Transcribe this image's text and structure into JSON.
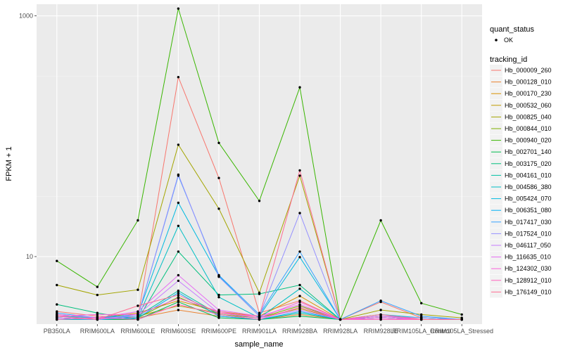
{
  "chart_data": {
    "type": "line",
    "xlabel": "sample_name",
    "ylabel": "FPKM + 1",
    "y_scale": "log10",
    "ylim": [
      2.75,
      1250
    ],
    "y_ticks": [
      10,
      1000
    ],
    "y_tick_labels": [
      "10",
      "1000"
    ],
    "grid": true,
    "legend_position": "right",
    "categories": [
      "PB350LA",
      "RRIM600LA",
      "RRIM600LE",
      "RRIM600SE",
      "RRIM600PE",
      "RRIM901LA",
      "RRIM928BA",
      "RRIM928LA",
      "RRIM928LE",
      "RRIM105LA_Control",
      "RRIM105LA_Stressed"
    ],
    "marker_legend": {
      "title": "quant_status",
      "items": [
        "OK"
      ]
    },
    "series_legend_title": "tracking_id",
    "series": [
      {
        "name": "Hb_000009_260",
        "color": "#F8766D",
        "values": [
          3.5,
          3.2,
          3.1,
          310,
          45,
          3.4,
          4.3,
          3.0,
          4.2,
          3.1,
          3.0
        ]
      },
      {
        "name": "Hb_000128_010",
        "color": "#EA8331",
        "values": [
          3.1,
          3.0,
          3.1,
          3.6,
          3.2,
          3.0,
          3.3,
          3.0,
          3.1,
          3.0,
          3.0
        ]
      },
      {
        "name": "Hb_000170_230",
        "color": "#D89000",
        "values": [
          3.3,
          3.1,
          3.4,
          4.3,
          3.5,
          3.2,
          4.7,
          3.0,
          3.2,
          3.1,
          3.0
        ]
      },
      {
        "name": "Hb_000532_060",
        "color": "#C09B00",
        "values": [
          3.2,
          3.1,
          3.2,
          3.9,
          3.4,
          3.1,
          3.7,
          3.0,
          3.1,
          3.0,
          3.0
        ]
      },
      {
        "name": "Hb_000825_040",
        "color": "#A3A500",
        "values": [
          5.8,
          4.8,
          5.3,
          85,
          25,
          5.0,
          47,
          3.0,
          3.6,
          3.3,
          3.1
        ]
      },
      {
        "name": "Hb_000844_010",
        "color": "#7CAE00",
        "values": [
          3.1,
          3.0,
          3.1,
          4.6,
          3.3,
          3.1,
          3.9,
          3.0,
          3.1,
          3.0,
          3.0
        ]
      },
      {
        "name": "Hb_000940_020",
        "color": "#39B600",
        "values": [
          9.2,
          5.6,
          20,
          1150,
          88,
          29,
          255,
          3.0,
          20,
          4.1,
          3.3
        ]
      },
      {
        "name": "Hb_002701_140",
        "color": "#00BB4E",
        "values": [
          3.0,
          3.0,
          3.0,
          4.2,
          3.1,
          3.0,
          3.2,
          3.0,
          3.0,
          3.0,
          3.0
        ]
      },
      {
        "name": "Hb_003175_020",
        "color": "#00BF7D",
        "values": [
          4.0,
          3.4,
          3.0,
          11,
          4.8,
          4.9,
          5.8,
          3.0,
          3.2,
          3.0,
          3.0
        ]
      },
      {
        "name": "Hb_004161_010",
        "color": "#00C1A3",
        "values": [
          3.1,
          3.0,
          3.2,
          5.2,
          3.3,
          3.0,
          3.4,
          3.0,
          3.0,
          3.0,
          3.0
        ]
      },
      {
        "name": "Hb_004586_380",
        "color": "#00BFC4",
        "values": [
          3.0,
          3.0,
          3.1,
          18,
          4.6,
          3.1,
          5.4,
          3.0,
          3.1,
          3.0,
          3.0
        ]
      },
      {
        "name": "Hb_005424_070",
        "color": "#00BAE0",
        "values": [
          3.2,
          3.1,
          3.3,
          28,
          6.9,
          3.2,
          9.9,
          3.0,
          3.3,
          3.1,
          3.0
        ]
      },
      {
        "name": "Hb_006351_080",
        "color": "#00B0F6",
        "values": [
          3.1,
          3.0,
          3.1,
          5.0,
          3.2,
          3.0,
          3.5,
          3.0,
          3.1,
          3.0,
          3.0
        ]
      },
      {
        "name": "Hb_017417_030",
        "color": "#35A2FF",
        "values": [
          3.4,
          3.1,
          3.2,
          47,
          7.0,
          3.3,
          11,
          3.0,
          4.3,
          3.2,
          3.0
        ]
      },
      {
        "name": "Hb_017524_010",
        "color": "#9590FF",
        "values": [
          3.2,
          3.0,
          3.2,
          48,
          6.8,
          3.2,
          23,
          3.0,
          3.2,
          3.1,
          3.0
        ]
      },
      {
        "name": "Hb_046117_050",
        "color": "#C77CFF",
        "values": [
          3.1,
          3.0,
          3.3,
          6.3,
          3.4,
          3.1,
          3.6,
          3.0,
          3.1,
          3.0,
          3.0
        ]
      },
      {
        "name": "Hb_116635_010",
        "color": "#E76BF3",
        "values": [
          3.3,
          3.1,
          3.5,
          7.0,
          3.6,
          3.2,
          4.0,
          3.0,
          3.2,
          3.0,
          3.0
        ]
      },
      {
        "name": "Hb_124302_030",
        "color": "#FA62DB",
        "values": [
          3.2,
          3.3,
          3.3,
          4.5,
          3.5,
          3.1,
          4.2,
          3.0,
          3.1,
          3.0,
          3.0
        ]
      },
      {
        "name": "Hb_128912_010",
        "color": "#FF62BC",
        "values": [
          3.0,
          3.1,
          3.0,
          4.0,
          3.3,
          3.0,
          3.8,
          3.0,
          3.0,
          3.0,
          3.0
        ]
      },
      {
        "name": "Hb_176149_010",
        "color": "#FF6C91",
        "values": [
          3.2,
          3.0,
          3.9,
          4.8,
          3.4,
          3.2,
          52,
          3.0,
          3.3,
          3.0,
          3.0
        ]
      }
    ]
  }
}
